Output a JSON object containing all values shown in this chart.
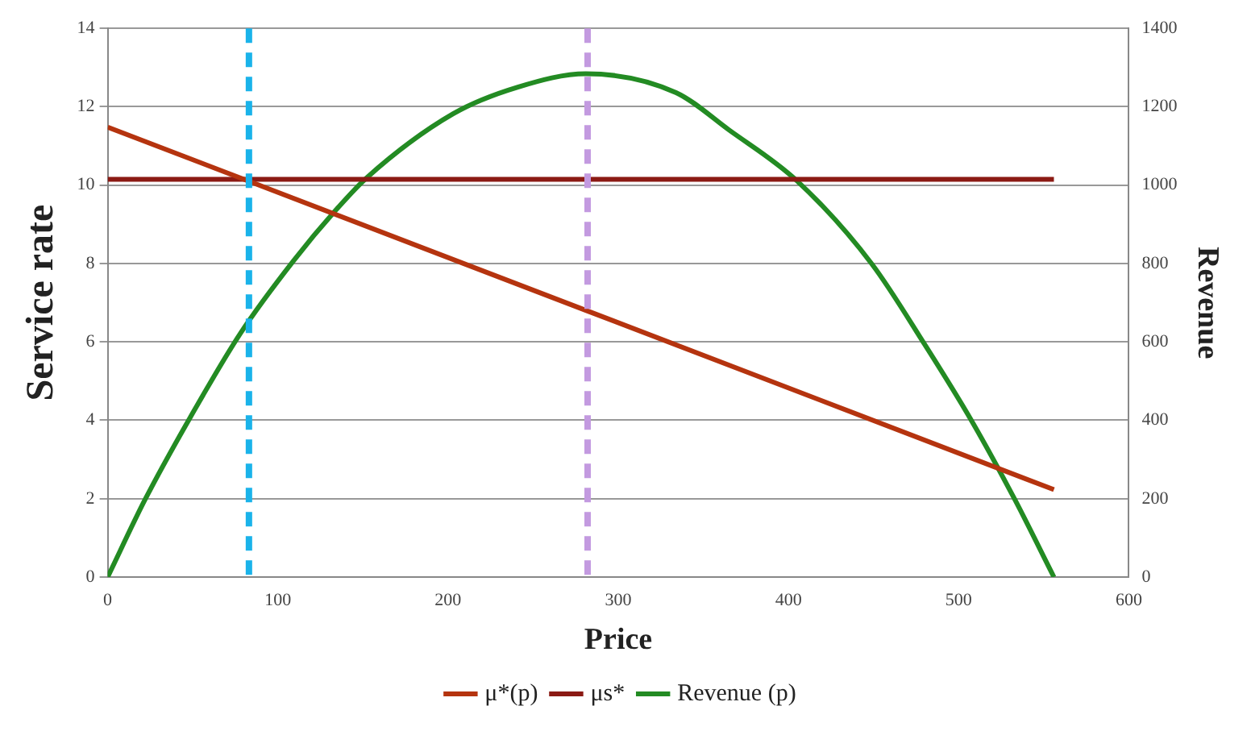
{
  "chart_data": {
    "type": "line",
    "xlabel": "Price",
    "ylabel": "Service rate",
    "y2label": "Revenue",
    "xlim": [
      0,
      600
    ],
    "xticks": [
      0,
      100,
      200,
      300,
      400,
      500,
      600
    ],
    "ylim": [
      0,
      14
    ],
    "yticks": [
      0,
      2,
      4,
      6,
      8,
      10,
      12,
      14
    ],
    "y2lim": [
      0,
      1400
    ],
    "y2ticks": [
      0,
      200,
      400,
      600,
      800,
      1000,
      1200,
      1400
    ],
    "grid": "y",
    "legend": "bottom",
    "marker": "none",
    "line_style": "solid",
    "series": [
      {
        "name": "μ*(p)",
        "color": "#b5340f",
        "x": [
          0,
          556
        ],
        "values": [
          11.48,
          2.23
        ]
      },
      {
        "name": "μs*",
        "color": "#8b1a14",
        "x": [
          0,
          556
        ],
        "values": [
          10.15,
          10.15
        ]
      },
      {
        "name": "Revenue (p)",
        "color": "#238b23",
        "axis": "y2",
        "x": [
          0,
          22,
          47,
          78,
          109,
          134,
          152,
          203,
          241,
          281,
          334,
          365,
          405,
          449,
          480,
          508,
          533,
          556
        ],
        "values": [
          0,
          198,
          396,
          622,
          806,
          936,
          1018,
          1182,
          1250,
          1284,
          1236,
          1141,
          1011,
          799,
          594,
          396,
          198,
          0
        ]
      }
    ],
    "ref_lines": [
      {
        "axis": "x",
        "value": 83,
        "color": "#1ab3ea",
        "line_style": "dashed"
      },
      {
        "axis": "x",
        "value": 282,
        "color": "#c39ae0",
        "line_style": "dashed"
      }
    ]
  }
}
